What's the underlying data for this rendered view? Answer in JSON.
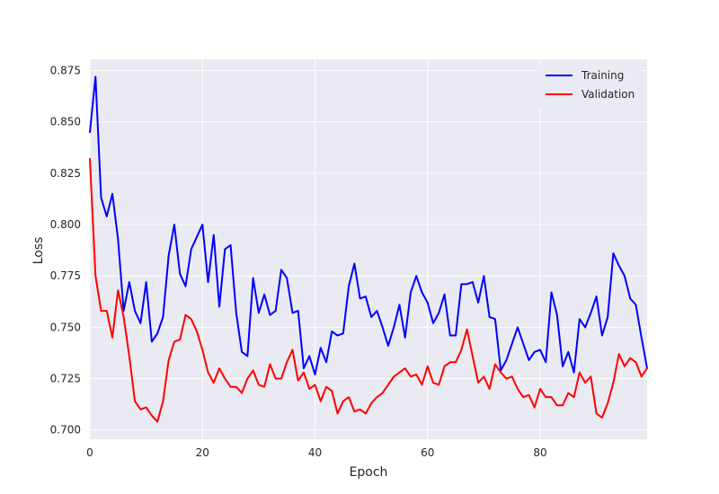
{
  "chart_data": {
    "type": "line",
    "title": "",
    "xlabel": "Epoch",
    "ylabel": "Loss",
    "xlim": [
      0,
      99
    ],
    "ylim": [
      0.6955,
      0.8805
    ],
    "xticks": [
      0,
      20,
      40,
      60,
      80
    ],
    "yticks": [
      0.7,
      0.725,
      0.75,
      0.775,
      0.8,
      0.825,
      0.85,
      0.875
    ],
    "ytick_labels": [
      "0.700",
      "0.725",
      "0.750",
      "0.775",
      "0.800",
      "0.825",
      "0.850",
      "0.875"
    ],
    "grid": true,
    "legend_position": "upper right",
    "background": "#eaeaf2",
    "x": [
      0,
      1,
      2,
      3,
      4,
      5,
      6,
      7,
      8,
      9,
      10,
      11,
      12,
      13,
      14,
      15,
      16,
      17,
      18,
      19,
      20,
      21,
      22,
      23,
      24,
      25,
      26,
      27,
      28,
      29,
      30,
      31,
      32,
      33,
      34,
      35,
      36,
      37,
      38,
      39,
      40,
      41,
      42,
      43,
      44,
      45,
      46,
      47,
      48,
      49,
      50,
      51,
      52,
      53,
      54,
      55,
      56,
      57,
      58,
      59,
      60,
      61,
      62,
      63,
      64,
      65,
      66,
      67,
      68,
      69,
      70,
      71,
      72,
      73,
      74,
      75,
      76,
      77,
      78,
      79,
      80,
      81,
      82,
      83,
      84,
      85,
      86,
      87,
      88,
      89,
      90,
      91,
      92,
      93,
      94,
      95,
      96,
      97,
      98,
      99
    ],
    "series": [
      {
        "name": "Training",
        "color": "#0000ff",
        "values": [
          0.845,
          0.872,
          0.813,
          0.804,
          0.815,
          0.793,
          0.758,
          0.772,
          0.758,
          0.752,
          0.772,
          0.743,
          0.747,
          0.755,
          0.785,
          0.8,
          0.776,
          0.77,
          0.788,
          0.794,
          0.8,
          0.772,
          0.795,
          0.76,
          0.788,
          0.79,
          0.757,
          0.738,
          0.736,
          0.774,
          0.757,
          0.766,
          0.756,
          0.758,
          0.778,
          0.774,
          0.757,
          0.758,
          0.73,
          0.736,
          0.727,
          0.74,
          0.733,
          0.748,
          0.746,
          0.747,
          0.77,
          0.781,
          0.764,
          0.765,
          0.755,
          0.758,
          0.75,
          0.741,
          0.75,
          0.761,
          0.745,
          0.767,
          0.775,
          0.767,
          0.762,
          0.752,
          0.757,
          0.766,
          0.746,
          0.746,
          0.771,
          0.771,
          0.772,
          0.762,
          0.775,
          0.755,
          0.754,
          0.729,
          0.734,
          0.742,
          0.75,
          0.742,
          0.734,
          0.738,
          0.739,
          0.733,
          0.767,
          0.756,
          0.731,
          0.738,
          0.728,
          0.754,
          0.75,
          0.757,
          0.765,
          0.746,
          0.755,
          0.786,
          0.78,
          0.775,
          0.764,
          0.761,
          0.745,
          0.73
        ]
      },
      {
        "name": "Validation",
        "color": "#ff0000",
        "values": [
          0.832,
          0.775,
          0.758,
          0.758,
          0.745,
          0.768,
          0.755,
          0.736,
          0.714,
          0.71,
          0.711,
          0.707,
          0.704,
          0.714,
          0.734,
          0.743,
          0.744,
          0.756,
          0.754,
          0.748,
          0.739,
          0.728,
          0.723,
          0.73,
          0.725,
          0.721,
          0.721,
          0.718,
          0.725,
          0.729,
          0.722,
          0.721,
          0.732,
          0.725,
          0.725,
          0.733,
          0.739,
          0.724,
          0.728,
          0.72,
          0.722,
          0.714,
          0.721,
          0.719,
          0.708,
          0.714,
          0.716,
          0.709,
          0.71,
          0.708,
          0.713,
          0.716,
          0.718,
          0.722,
          0.726,
          0.728,
          0.73,
          0.726,
          0.727,
          0.722,
          0.731,
          0.723,
          0.722,
          0.731,
          0.733,
          0.733,
          0.739,
          0.749,
          0.736,
          0.723,
          0.726,
          0.72,
          0.732,
          0.728,
          0.725,
          0.726,
          0.72,
          0.716,
          0.717,
          0.711,
          0.72,
          0.716,
          0.716,
          0.712,
          0.712,
          0.718,
          0.716,
          0.728,
          0.723,
          0.726,
          0.708,
          0.706,
          0.713,
          0.723,
          0.737,
          0.731,
          0.735,
          0.733,
          0.726,
          0.73
        ]
      }
    ]
  }
}
